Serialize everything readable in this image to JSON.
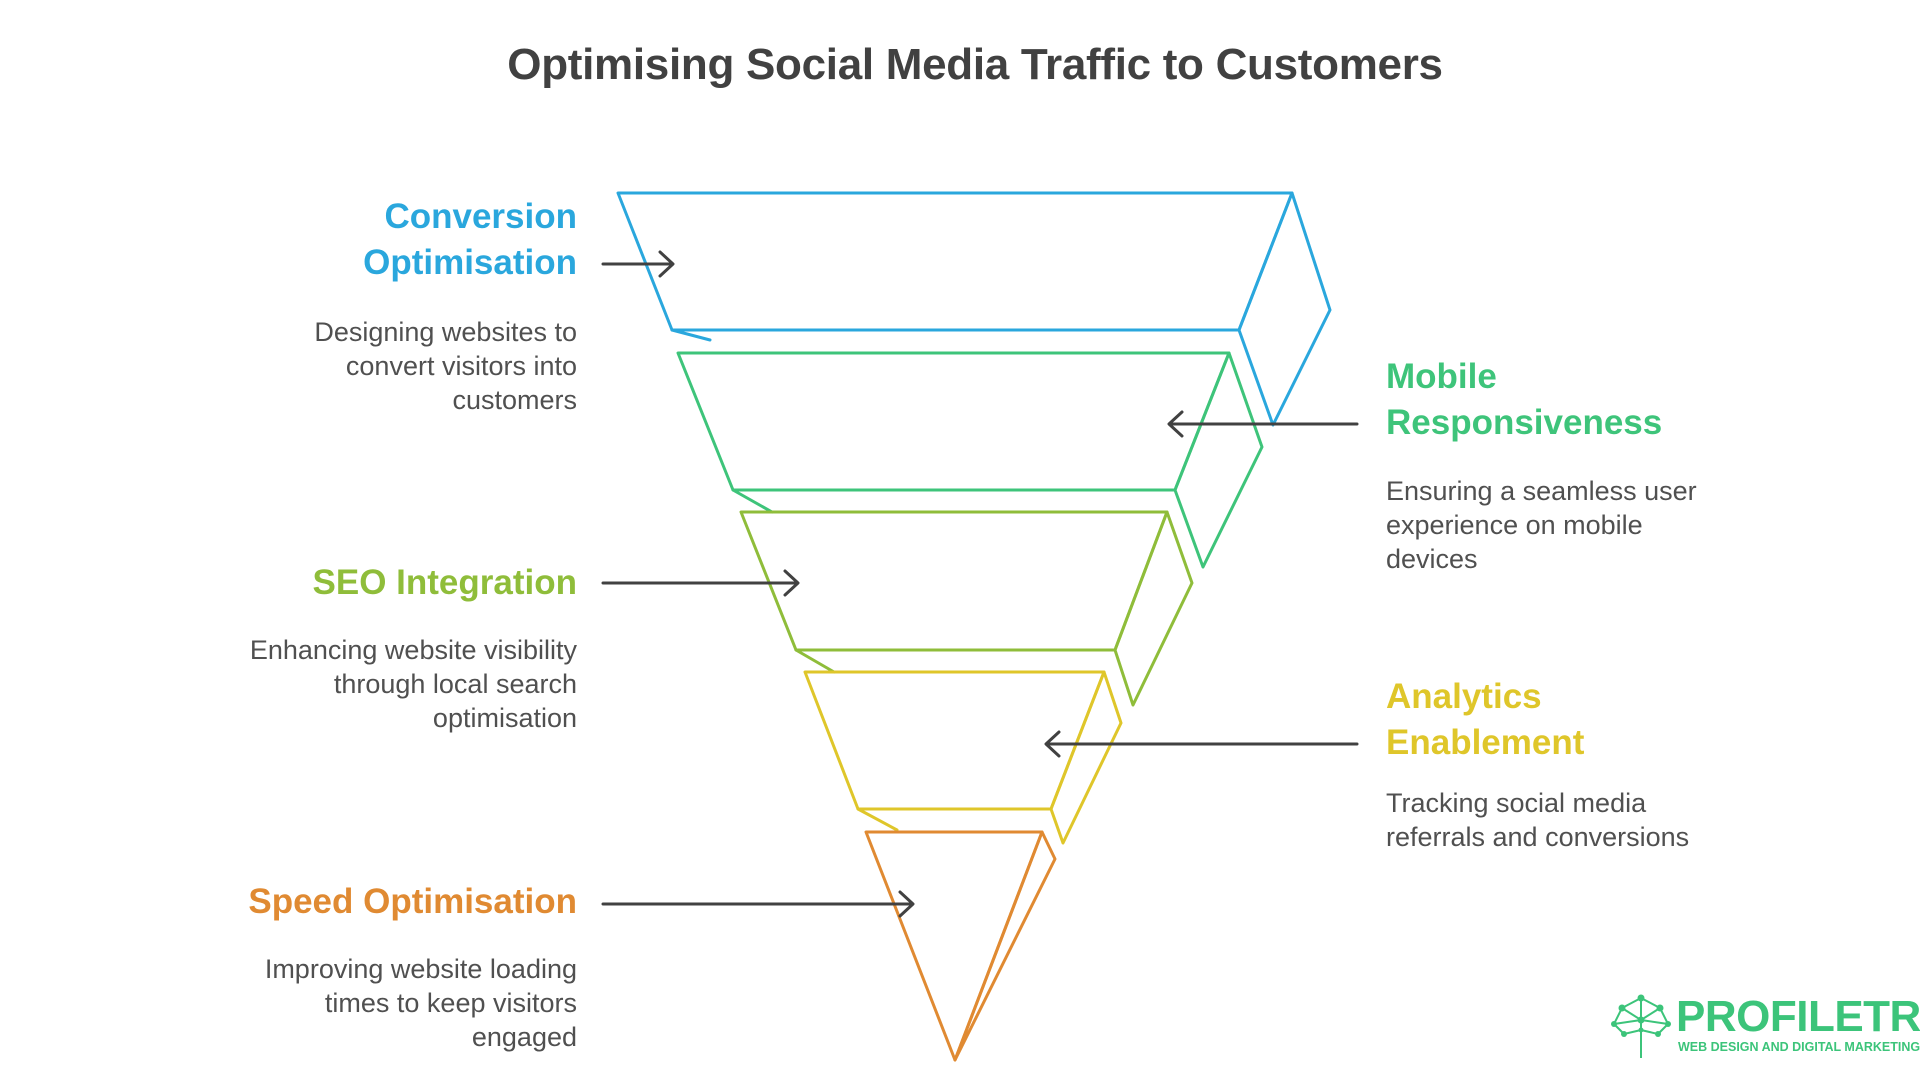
{
  "title": "Optimising Social Media Traffic to Customers",
  "colors": {
    "conversion": "#2aa7dd",
    "mobile": "#3ec47a",
    "seo": "#8fbd3a",
    "analytics": "#dfc62a",
    "speed": "#e08a32",
    "arrow": "#414141",
    "description": "#505050",
    "title": "#414141",
    "logo": "#3cc47a"
  },
  "stages": [
    {
      "heading_line1": "Conversion",
      "heading_line2": "Optimisation",
      "description_line1": "Designing websites to",
      "description_line2": "convert visitors into",
      "description_line3": "customers"
    },
    {
      "heading_line1": "Mobile",
      "heading_line2": "Responsiveness",
      "description_line1": "Ensuring a seamless user",
      "description_line2": "experience on mobile",
      "description_line3": "devices"
    },
    {
      "heading_line1": "SEO Integration",
      "description_line1": "Enhancing website visibility",
      "description_line2": "through local search",
      "description_line3": "optimisation"
    },
    {
      "heading_line1": "Analytics",
      "heading_line2": "Enablement",
      "description_line1": "Tracking social media",
      "description_line2": "referrals and conversions"
    },
    {
      "heading_line1": "Speed Optimisation",
      "description_line1": "Improving website loading",
      "description_line2": "times to keep visitors",
      "description_line3": "engaged"
    }
  ],
  "logo": {
    "name": "PROFILETREE",
    "tagline": "WEB DESIGN AND DIGITAL MARKETING",
    "icon": "tree-network-icon"
  }
}
